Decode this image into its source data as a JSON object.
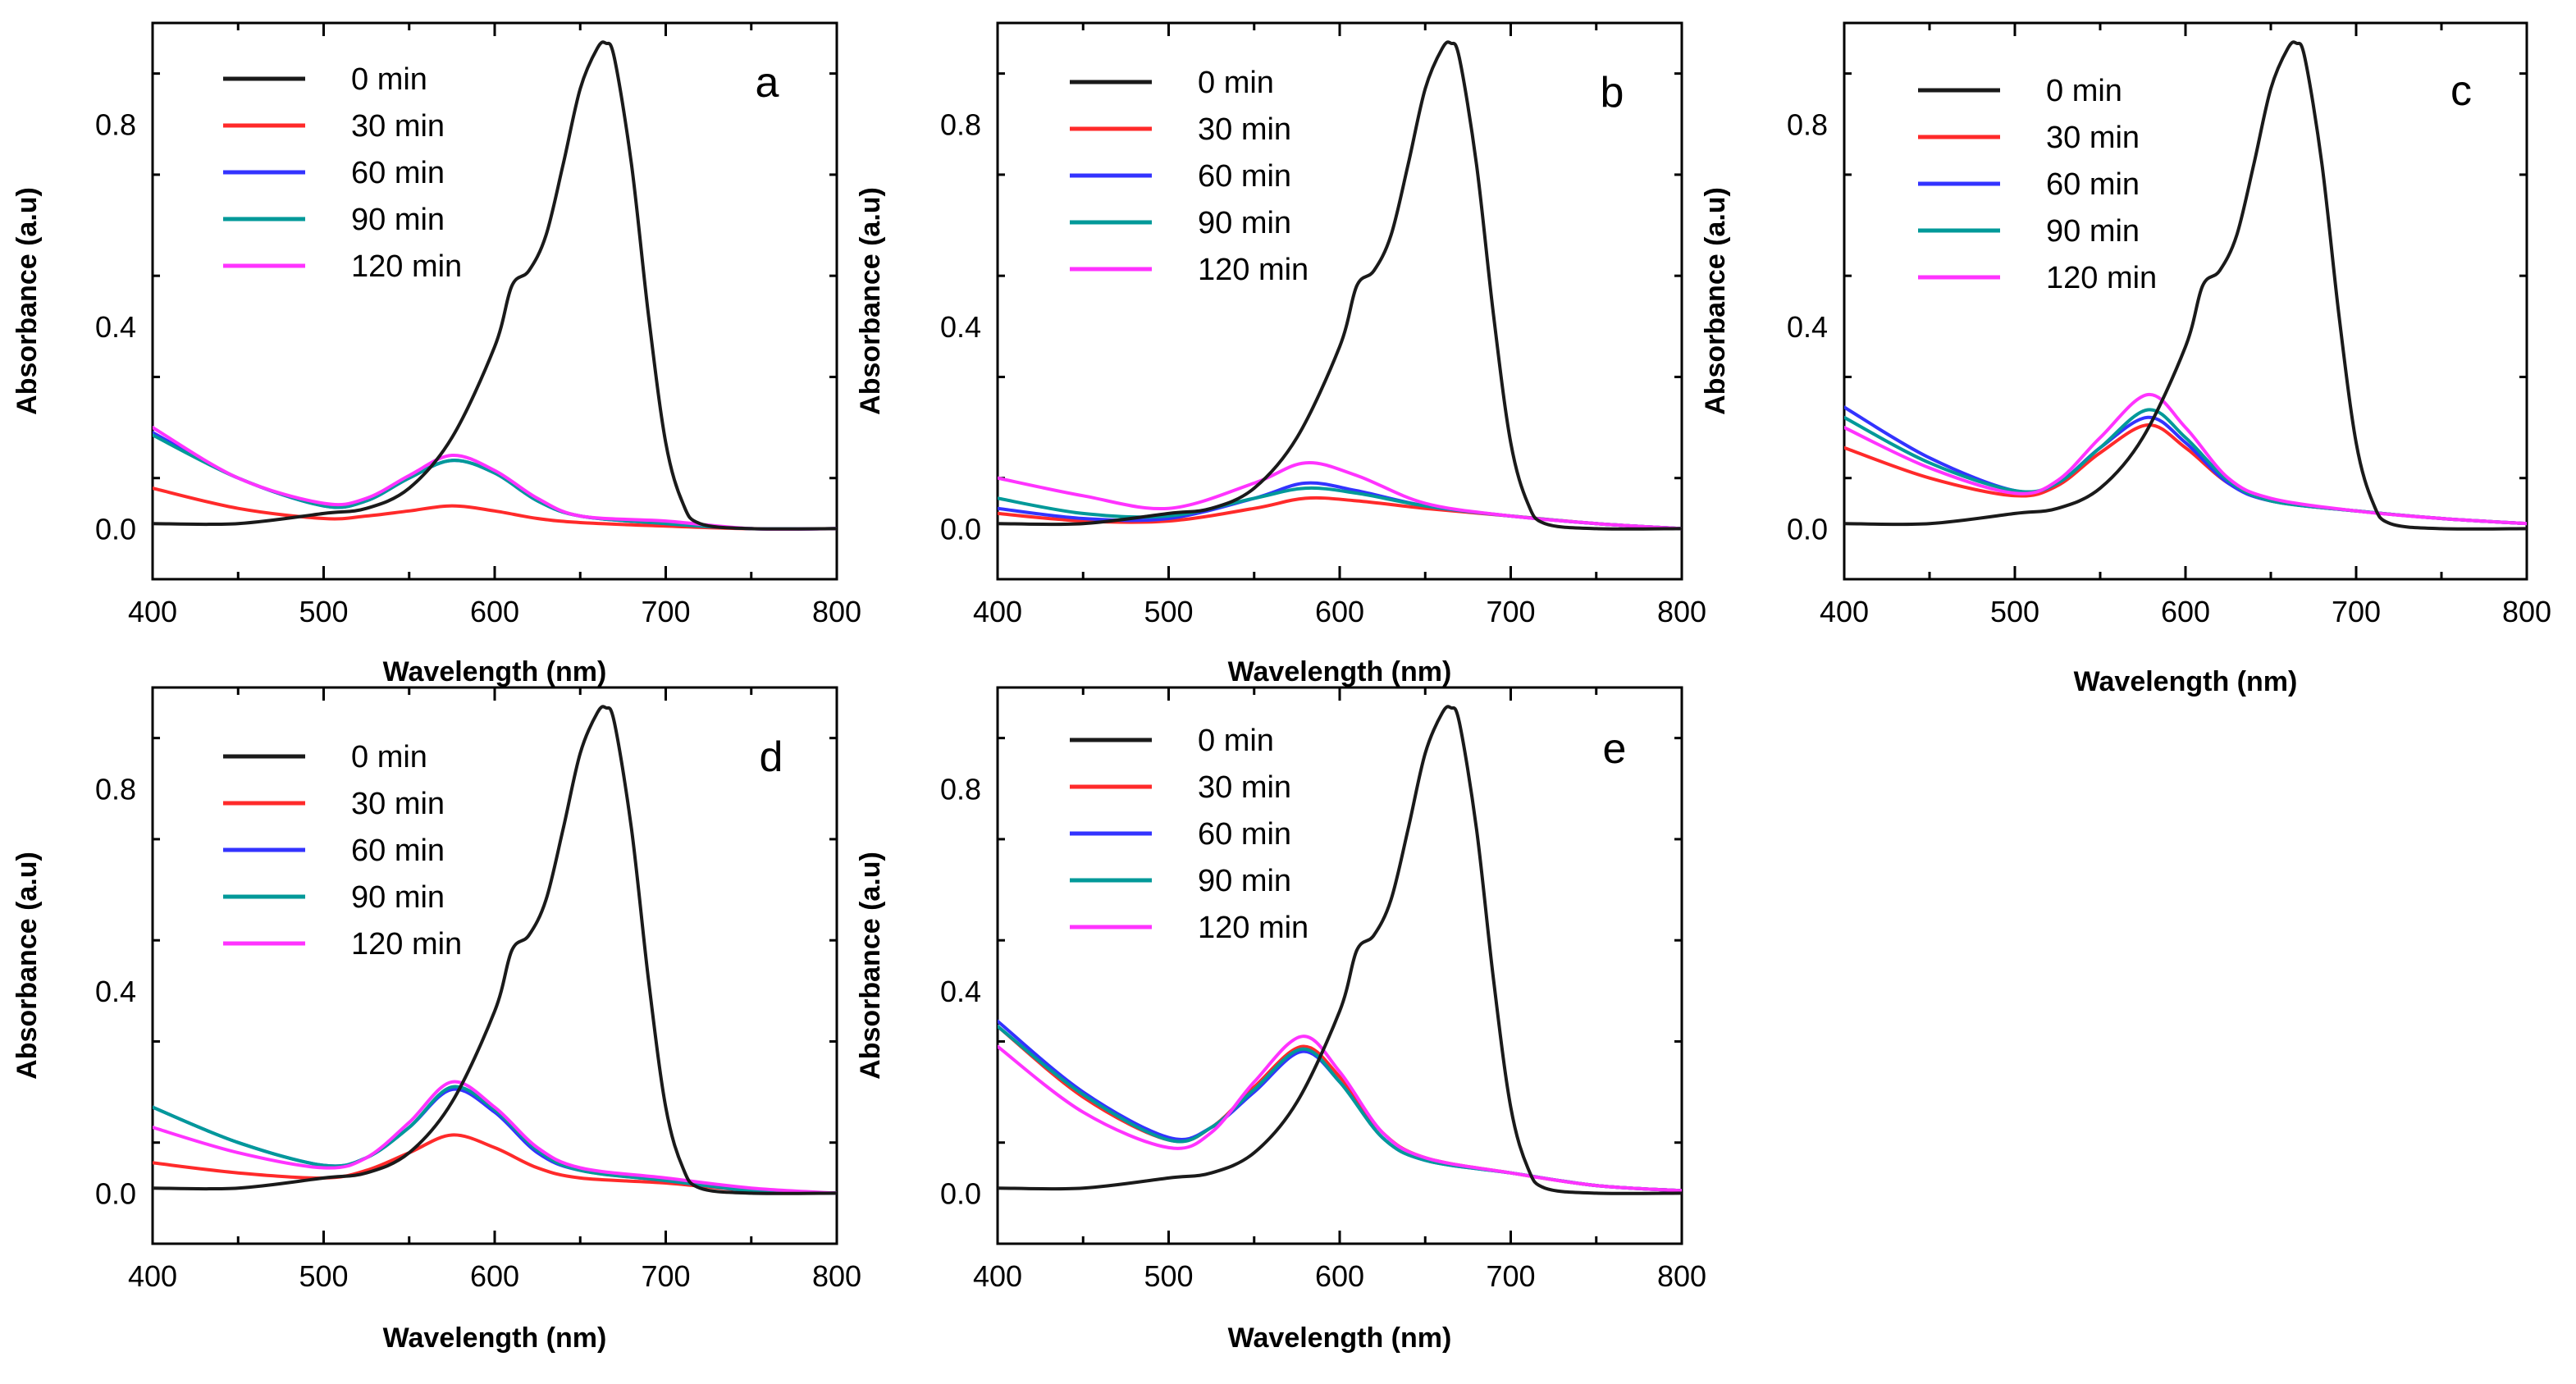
{
  "chart_data": [
    {
      "type": "line",
      "panel": "a",
      "xlabel": "Wavelength (nm)",
      "ylabel": "Absorbance (a.u)",
      "xlim": [
        400,
        800
      ],
      "ylim": [
        -0.1,
        1.0
      ],
      "xticks": [
        "400",
        "500",
        "600",
        "700",
        "800"
      ],
      "yticks": [
        "0.0",
        "0.4",
        "0.8"
      ],
      "legend": [
        "0 min",
        "30 min",
        "60 min",
        "90 min",
        "120 min"
      ],
      "series": [
        {
          "name": "0 min",
          "color": "#1a1a1a",
          "x": [
            400,
            450,
            500,
            525,
            550,
            575,
            600,
            610,
            620,
            630,
            640,
            650,
            660,
            665,
            670,
            680,
            690,
            700,
            710,
            720,
            750,
            800
          ],
          "y": [
            0.01,
            0.01,
            0.03,
            0.04,
            0.08,
            0.18,
            0.36,
            0.48,
            0.51,
            0.58,
            0.72,
            0.87,
            0.95,
            0.96,
            0.93,
            0.72,
            0.42,
            0.17,
            0.05,
            0.01,
            0.0,
            0.0
          ]
        },
        {
          "name": "30 min",
          "color": "#ff2a2a",
          "x": [
            400,
            450,
            500,
            525,
            550,
            575,
            600,
            625,
            650,
            700,
            750,
            800
          ],
          "y": [
            0.08,
            0.04,
            0.02,
            0.025,
            0.035,
            0.045,
            0.035,
            0.02,
            0.012,
            0.005,
            0.0,
            0.0
          ]
        },
        {
          "name": "60 min",
          "color": "#3333ff",
          "x": [
            400,
            450,
            500,
            525,
            550,
            575,
            600,
            625,
            650,
            700,
            750,
            800
          ],
          "y": [
            0.19,
            0.1,
            0.045,
            0.055,
            0.1,
            0.135,
            0.11,
            0.055,
            0.025,
            0.01,
            0.0,
            0.0
          ]
        },
        {
          "name": "90 min",
          "color": "#009999",
          "x": [
            400,
            450,
            500,
            525,
            550,
            575,
            600,
            625,
            650,
            700,
            750,
            800
          ],
          "y": [
            0.185,
            0.1,
            0.045,
            0.055,
            0.1,
            0.135,
            0.11,
            0.055,
            0.025,
            0.01,
            0.0,
            0.0
          ]
        },
        {
          "name": "120 min",
          "color": "#ff33ff",
          "x": [
            400,
            450,
            500,
            525,
            550,
            575,
            600,
            625,
            650,
            700,
            750,
            800
          ],
          "y": [
            0.2,
            0.1,
            0.05,
            0.06,
            0.105,
            0.145,
            0.115,
            0.06,
            0.025,
            0.015,
            0.0,
            0.0
          ]
        }
      ]
    },
    {
      "type": "line",
      "panel": "b",
      "xlabel": "Wavelength (nm)",
      "ylabel": "Absorbance (a.u)",
      "xlim": [
        400,
        800
      ],
      "ylim": [
        -0.1,
        1.0
      ],
      "xticks": [
        "400",
        "500",
        "600",
        "700",
        "800"
      ],
      "yticks": [
        "0.0",
        "0.4",
        "0.8"
      ],
      "legend": [
        "0 min",
        "30 min",
        "60 min",
        "90 min",
        "120 min"
      ],
      "series": [
        {
          "name": "0 min",
          "color": "#1a1a1a",
          "x": [
            400,
            450,
            500,
            525,
            550,
            575,
            600,
            610,
            620,
            630,
            640,
            650,
            660,
            665,
            670,
            680,
            690,
            700,
            710,
            720,
            750,
            800
          ],
          "y": [
            0.01,
            0.01,
            0.03,
            0.04,
            0.08,
            0.18,
            0.36,
            0.48,
            0.51,
            0.58,
            0.72,
            0.87,
            0.95,
            0.96,
            0.93,
            0.72,
            0.42,
            0.17,
            0.05,
            0.01,
            0.0,
            0.0
          ]
        },
        {
          "name": "30 min",
          "color": "#ff2a2a",
          "x": [
            400,
            450,
            500,
            550,
            580,
            610,
            650,
            700,
            750,
            800
          ],
          "y": [
            0.03,
            0.015,
            0.015,
            0.04,
            0.06,
            0.055,
            0.04,
            0.025,
            0.01,
            0.0
          ]
        },
        {
          "name": "60 min",
          "color": "#3333ff",
          "x": [
            400,
            450,
            500,
            550,
            580,
            610,
            650,
            700,
            750,
            800
          ],
          "y": [
            0.04,
            0.02,
            0.02,
            0.06,
            0.09,
            0.075,
            0.045,
            0.025,
            0.01,
            0.0
          ]
        },
        {
          "name": "90 min",
          "color": "#009999",
          "x": [
            400,
            450,
            500,
            550,
            580,
            610,
            650,
            700,
            750,
            800
          ],
          "y": [
            0.06,
            0.03,
            0.025,
            0.06,
            0.08,
            0.07,
            0.045,
            0.025,
            0.01,
            0.0
          ]
        },
        {
          "name": "120 min",
          "color": "#ff33ff",
          "x": [
            400,
            450,
            500,
            550,
            580,
            610,
            650,
            700,
            750,
            800
          ],
          "y": [
            0.1,
            0.065,
            0.04,
            0.09,
            0.13,
            0.105,
            0.05,
            0.025,
            0.01,
            0.0
          ]
        }
      ]
    },
    {
      "type": "line",
      "panel": "c",
      "xlabel": "Wavelength (nm)",
      "ylabel": "Absorbance (a.u)",
      "xlim": [
        400,
        800
      ],
      "ylim": [
        -0.1,
        1.0
      ],
      "xticks": [
        "400",
        "500",
        "600",
        "700",
        "800"
      ],
      "yticks": [
        "0.0",
        "0.4",
        "0.8"
      ],
      "legend": [
        "0 min",
        "30 min",
        "60 min",
        "90 min",
        "120 min"
      ],
      "series": [
        {
          "name": "0 min",
          "color": "#1a1a1a",
          "x": [
            400,
            450,
            500,
            525,
            550,
            575,
            600,
            610,
            620,
            630,
            640,
            650,
            660,
            665,
            670,
            680,
            690,
            700,
            710,
            720,
            750,
            800
          ],
          "y": [
            0.01,
            0.01,
            0.03,
            0.04,
            0.08,
            0.18,
            0.36,
            0.48,
            0.51,
            0.58,
            0.72,
            0.87,
            0.95,
            0.96,
            0.93,
            0.72,
            0.42,
            0.17,
            0.05,
            0.01,
            0.0,
            0.0
          ]
        },
        {
          "name": "30 min",
          "color": "#ff2a2a",
          "x": [
            400,
            450,
            500,
            525,
            550,
            578,
            600,
            625,
            650,
            700,
            750,
            800
          ],
          "y": [
            0.16,
            0.1,
            0.065,
            0.085,
            0.15,
            0.205,
            0.16,
            0.09,
            0.055,
            0.035,
            0.02,
            0.01
          ]
        },
        {
          "name": "60 min",
          "color": "#3333ff",
          "x": [
            400,
            450,
            500,
            525,
            550,
            578,
            600,
            625,
            650,
            700,
            750,
            800
          ],
          "y": [
            0.24,
            0.14,
            0.075,
            0.09,
            0.16,
            0.22,
            0.17,
            0.09,
            0.055,
            0.035,
            0.02,
            0.01
          ]
        },
        {
          "name": "90 min",
          "color": "#009999",
          "x": [
            400,
            450,
            500,
            525,
            550,
            578,
            600,
            625,
            650,
            700,
            750,
            800
          ],
          "y": [
            0.22,
            0.13,
            0.075,
            0.09,
            0.16,
            0.235,
            0.18,
            0.095,
            0.055,
            0.035,
            0.02,
            0.01
          ]
        },
        {
          "name": "120 min",
          "color": "#ff33ff",
          "x": [
            400,
            450,
            500,
            525,
            550,
            578,
            600,
            625,
            650,
            700,
            750,
            800
          ],
          "y": [
            0.2,
            0.12,
            0.07,
            0.095,
            0.18,
            0.265,
            0.2,
            0.1,
            0.06,
            0.035,
            0.02,
            0.01
          ]
        }
      ]
    },
    {
      "type": "line",
      "panel": "d",
      "xlabel": "Wavelength (nm)",
      "ylabel": "Absorbance (a.u)",
      "xlim": [
        400,
        800
      ],
      "ylim": [
        -0.1,
        1.0
      ],
      "xticks": [
        "400",
        "500",
        "600",
        "700",
        "800"
      ],
      "yticks": [
        "0.0",
        "0.4",
        "0.8"
      ],
      "legend": [
        "0 min",
        "30 min",
        "60 min",
        "90 min",
        "120 min"
      ],
      "series": [
        {
          "name": "0 min",
          "color": "#1a1a1a",
          "x": [
            400,
            450,
            500,
            525,
            550,
            575,
            600,
            610,
            620,
            630,
            640,
            650,
            660,
            665,
            670,
            680,
            690,
            700,
            710,
            720,
            750,
            800
          ],
          "y": [
            0.01,
            0.01,
            0.03,
            0.04,
            0.08,
            0.18,
            0.36,
            0.48,
            0.51,
            0.58,
            0.72,
            0.87,
            0.95,
            0.96,
            0.93,
            0.72,
            0.42,
            0.17,
            0.05,
            0.01,
            0.0,
            0.0
          ]
        },
        {
          "name": "30 min",
          "color": "#ff2a2a",
          "x": [
            400,
            450,
            500,
            525,
            550,
            575,
            600,
            625,
            650,
            700,
            750,
            800
          ],
          "y": [
            0.06,
            0.04,
            0.03,
            0.045,
            0.08,
            0.115,
            0.09,
            0.05,
            0.03,
            0.02,
            0.005,
            0.0
          ]
        },
        {
          "name": "60 min",
          "color": "#3333ff",
          "x": [
            400,
            450,
            500,
            525,
            550,
            575,
            600,
            625,
            650,
            700,
            750,
            800
          ],
          "y": [
            0.17,
            0.1,
            0.055,
            0.07,
            0.13,
            0.205,
            0.16,
            0.08,
            0.045,
            0.025,
            0.005,
            0.0
          ]
        },
        {
          "name": "90 min",
          "color": "#009999",
          "x": [
            400,
            450,
            500,
            525,
            550,
            575,
            600,
            625,
            650,
            700,
            750,
            800
          ],
          "y": [
            0.17,
            0.1,
            0.055,
            0.07,
            0.13,
            0.21,
            0.165,
            0.085,
            0.045,
            0.025,
            0.005,
            0.0
          ]
        },
        {
          "name": "120 min",
          "color": "#ff33ff",
          "x": [
            400,
            450,
            500,
            525,
            550,
            575,
            600,
            625,
            650,
            700,
            750,
            800
          ],
          "y": [
            0.13,
            0.08,
            0.05,
            0.07,
            0.14,
            0.22,
            0.17,
            0.09,
            0.05,
            0.03,
            0.01,
            0.0
          ]
        }
      ]
    },
    {
      "type": "line",
      "panel": "e",
      "xlabel": "Wavelength (nm)",
      "ylabel": "Absorbance (a.u)",
      "xlim": [
        400,
        800
      ],
      "ylim": [
        -0.1,
        1.0
      ],
      "xticks": [
        "400",
        "500",
        "600",
        "700",
        "800"
      ],
      "yticks": [
        "0.0",
        "0.4",
        "0.8"
      ],
      "legend": [
        "0 min",
        "30 min",
        "60 min",
        "90 min",
        "120 min"
      ],
      "series": [
        {
          "name": "0 min",
          "color": "#1a1a1a",
          "x": [
            400,
            450,
            500,
            525,
            550,
            575,
            600,
            610,
            620,
            630,
            640,
            650,
            660,
            665,
            670,
            680,
            690,
            700,
            710,
            720,
            750,
            800
          ],
          "y": [
            0.01,
            0.01,
            0.03,
            0.04,
            0.08,
            0.18,
            0.36,
            0.48,
            0.51,
            0.58,
            0.72,
            0.87,
            0.95,
            0.96,
            0.93,
            0.72,
            0.42,
            0.17,
            0.05,
            0.01,
            0.0,
            0.0
          ]
        },
        {
          "name": "30 min",
          "color": "#ff2a2a",
          "x": [
            400,
            450,
            500,
            525,
            550,
            578,
            600,
            625,
            650,
            700,
            750,
            800
          ],
          "y": [
            0.33,
            0.19,
            0.105,
            0.13,
            0.21,
            0.29,
            0.23,
            0.12,
            0.07,
            0.04,
            0.015,
            0.005
          ]
        },
        {
          "name": "60 min",
          "color": "#3333ff",
          "x": [
            400,
            450,
            500,
            525,
            550,
            578,
            600,
            625,
            650,
            700,
            750,
            800
          ],
          "y": [
            0.34,
            0.2,
            0.11,
            0.13,
            0.2,
            0.28,
            0.22,
            0.11,
            0.065,
            0.04,
            0.015,
            0.005
          ]
        },
        {
          "name": "90 min",
          "color": "#009999",
          "x": [
            400,
            450,
            500,
            525,
            550,
            578,
            600,
            625,
            650,
            700,
            750,
            800
          ],
          "y": [
            0.33,
            0.195,
            0.105,
            0.13,
            0.205,
            0.285,
            0.22,
            0.11,
            0.065,
            0.04,
            0.015,
            0.005
          ]
        },
        {
          "name": "120 min",
          "color": "#ff33ff",
          "x": [
            400,
            450,
            500,
            525,
            550,
            578,
            600,
            625,
            650,
            700,
            750,
            800
          ],
          "y": [
            0.29,
            0.16,
            0.09,
            0.12,
            0.22,
            0.31,
            0.24,
            0.12,
            0.07,
            0.04,
            0.015,
            0.005
          ]
        }
      ]
    }
  ]
}
